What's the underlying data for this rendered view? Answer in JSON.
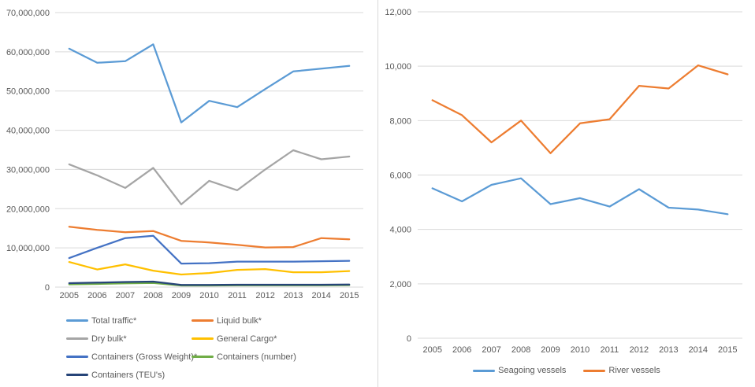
{
  "colors": {
    "grid": "#d9d9d9",
    "axis_text": "#595959",
    "background": "#ffffff"
  },
  "chart_data": [
    {
      "id": "cargo-traffic",
      "type": "line",
      "title": "",
      "xlabel": "",
      "ylabel": "",
      "grid": true,
      "legend_position": "bottom-left-two-columns",
      "categories": [
        "2005",
        "2006",
        "2007",
        "2008",
        "2009",
        "2010",
        "2011",
        "2012",
        "2013",
        "2014",
        "2015"
      ],
      "ylim": [
        0,
        70000000
      ],
      "ytick_step": 10000000,
      "ytick_labels": [
        "0",
        "10,000,000",
        "20,000,000",
        "30,000,000",
        "40,000,000",
        "50,000,000",
        "60,000,000",
        "70,000,000"
      ],
      "series": [
        {
          "name": "Total traffic*",
          "color": "#5B9BD5",
          "values": [
            60800000,
            57200000,
            57600000,
            61900000,
            42000000,
            47500000,
            45900000,
            50500000,
            55000000,
            55700000,
            56400000
          ]
        },
        {
          "name": "Liquid bulk*",
          "color": "#ED7D31",
          "values": [
            15400000,
            14600000,
            14000000,
            14300000,
            11800000,
            11400000,
            10800000,
            10100000,
            10200000,
            12500000,
            12200000
          ]
        },
        {
          "name": "Dry bulk*",
          "color": "#A5A5A5",
          "values": [
            31300000,
            28500000,
            25300000,
            30400000,
            21100000,
            27100000,
            24700000,
            30000000,
            34900000,
            32600000,
            33300000
          ]
        },
        {
          "name": "General Cargo*",
          "color": "#FFC000",
          "values": [
            6400000,
            4500000,
            5800000,
            4200000,
            3200000,
            3600000,
            4400000,
            4600000,
            3800000,
            3800000,
            4100000
          ]
        },
        {
          "name": "Containers (Gross Weight)*",
          "color": "#4472C4",
          "values": [
            7400000,
            10000000,
            12500000,
            13100000,
            6000000,
            6100000,
            6500000,
            6500000,
            6500000,
            6600000,
            6700000
          ]
        },
        {
          "name": "Containers (number)",
          "color": "#70AD47",
          "values": [
            700000,
            800000,
            950000,
            1050000,
            400000,
            400000,
            450000,
            450000,
            450000,
            450000,
            500000
          ]
        },
        {
          "name": "Containers (TEU's)",
          "color": "#264478",
          "values": [
            1000000,
            1150000,
            1300000,
            1400000,
            550000,
            550000,
            600000,
            600000,
            600000,
            600000,
            650000
          ]
        }
      ]
    },
    {
      "id": "vessels",
      "type": "line",
      "title": "",
      "xlabel": "",
      "ylabel": "",
      "grid": true,
      "legend_position": "bottom-center",
      "categories": [
        "2005",
        "2006",
        "2007",
        "2008",
        "2009",
        "2010",
        "2011",
        "2012",
        "2013",
        "2014",
        "2015"
      ],
      "ylim": [
        0,
        12000
      ],
      "ytick_step": 2000,
      "ytick_labels": [
        "0",
        "2,000",
        "4,000",
        "6,000",
        "8,000",
        "10,000",
        "12,000"
      ],
      "series": [
        {
          "name": "Seagoing vessels",
          "color": "#5B9BD5",
          "values": [
            5510,
            5030,
            5640,
            5880,
            4930,
            5150,
            4840,
            5480,
            4800,
            4730,
            4560
          ]
        },
        {
          "name": "River vessels",
          "color": "#ED7D31",
          "values": [
            8750,
            8200,
            7200,
            8000,
            6800,
            7900,
            8050,
            9280,
            9180,
            10030,
            9700
          ]
        }
      ]
    }
  ]
}
